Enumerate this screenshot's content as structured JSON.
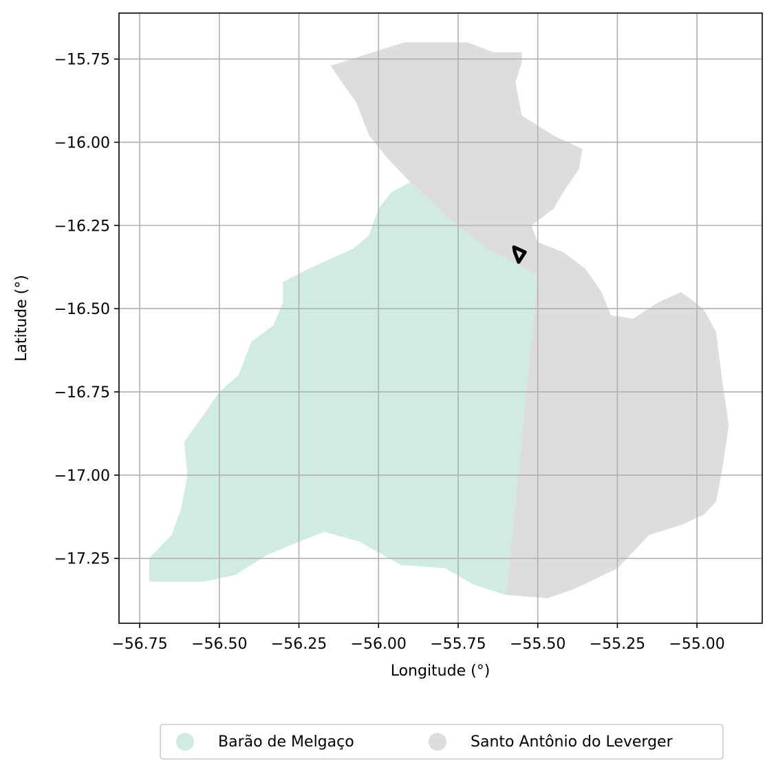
{
  "map": {
    "xlabel": "Longitude (°)",
    "ylabel": "Latitude (°)",
    "x_ticks": [
      -56.75,
      -56.5,
      -56.25,
      -56.0,
      -55.75,
      -55.5,
      -55.25,
      -55.0
    ],
    "x_tick_labels": [
      "−56.75",
      "−56.50",
      "−56.25",
      "−56.00",
      "−55.75",
      "−55.50",
      "−55.25",
      "−55.00"
    ],
    "y_ticks": [
      -15.75,
      -16.0,
      -16.25,
      -16.5,
      -16.75,
      -17.0,
      -17.25
    ],
    "y_tick_labels": [
      "−15.75",
      "−16.00",
      "−16.25",
      "−16.50",
      "−16.75",
      "−17.00",
      "−17.25"
    ],
    "xlim": [
      -56.815,
      -54.795
    ],
    "ylim": [
      -17.445,
      -15.612
    ],
    "grid": true,
    "legend_position": "bottom-center",
    "regions": [
      {
        "name": "Barão de Melgaço",
        "color": "#d0ebdf",
        "boundary": [
          [
            -55.9,
            -16.12
          ],
          [
            -55.79,
            -16.22
          ],
          [
            -55.66,
            -16.32
          ],
          [
            -55.5,
            -16.4
          ],
          [
            -55.6,
            -17.36
          ],
          [
            -55.7,
            -17.33
          ],
          [
            -55.79,
            -17.28
          ],
          [
            -55.93,
            -17.27
          ],
          [
            -56.06,
            -17.2
          ],
          [
            -56.17,
            -17.17
          ],
          [
            -56.25,
            -17.2
          ],
          [
            -56.35,
            -17.24
          ],
          [
            -56.45,
            -17.3
          ],
          [
            -56.55,
            -17.32
          ],
          [
            -56.64,
            -17.32
          ],
          [
            -56.72,
            -17.32
          ],
          [
            -56.72,
            -17.25
          ],
          [
            -56.65,
            -17.18
          ],
          [
            -56.62,
            -17.1
          ],
          [
            -56.6,
            -17.0
          ],
          [
            -56.61,
            -16.9
          ],
          [
            -56.55,
            -16.82
          ],
          [
            -56.5,
            -16.75
          ],
          [
            -56.44,
            -16.7
          ],
          [
            -56.4,
            -16.6
          ],
          [
            -56.33,
            -16.55
          ],
          [
            -56.3,
            -16.48
          ],
          [
            -56.3,
            -16.42
          ],
          [
            -56.22,
            -16.38
          ],
          [
            -56.15,
            -16.35
          ],
          [
            -56.08,
            -16.32
          ],
          [
            -56.03,
            -16.28
          ],
          [
            -56.0,
            -16.2
          ],
          [
            -55.96,
            -16.15
          ]
        ]
      },
      {
        "name": "Santo Antônio do Leverger",
        "color": "#dddddd",
        "boundary": [
          [
            -56.15,
            -15.77
          ],
          [
            -55.92,
            -15.7
          ],
          [
            -55.72,
            -15.7
          ],
          [
            -55.64,
            -15.73
          ],
          [
            -55.55,
            -15.73
          ],
          [
            -55.55,
            -15.76
          ],
          [
            -55.57,
            -15.82
          ],
          [
            -55.55,
            -15.92
          ],
          [
            -55.5,
            -15.95
          ],
          [
            -55.45,
            -15.98
          ],
          [
            -55.36,
            -16.02
          ],
          [
            -55.37,
            -16.08
          ],
          [
            -55.42,
            -16.15
          ],
          [
            -55.45,
            -16.2
          ],
          [
            -55.52,
            -16.25
          ],
          [
            -55.5,
            -16.3
          ],
          [
            -55.42,
            -16.33
          ],
          [
            -55.35,
            -16.38
          ],
          [
            -55.3,
            -16.45
          ],
          [
            -55.27,
            -16.52
          ],
          [
            -55.2,
            -16.53
          ],
          [
            -55.12,
            -16.48
          ],
          [
            -55.05,
            -16.45
          ],
          [
            -54.98,
            -16.5
          ],
          [
            -54.94,
            -16.57
          ],
          [
            -54.92,
            -16.72
          ],
          [
            -54.9,
            -16.85
          ],
          [
            -54.92,
            -16.98
          ],
          [
            -54.94,
            -17.08
          ],
          [
            -54.98,
            -17.12
          ],
          [
            -55.05,
            -17.15
          ],
          [
            -55.15,
            -17.18
          ],
          [
            -55.25,
            -17.28
          ],
          [
            -55.38,
            -17.34
          ],
          [
            -55.47,
            -17.37
          ],
          [
            -55.6,
            -17.36
          ],
          [
            -55.5,
            -16.4
          ],
          [
            -55.66,
            -16.32
          ],
          [
            -55.79,
            -16.22
          ],
          [
            -55.9,
            -16.12
          ],
          [
            -55.97,
            -16.05
          ],
          [
            -56.03,
            -15.98
          ],
          [
            -56.07,
            -15.88
          ],
          [
            -56.13,
            -15.8
          ]
        ]
      }
    ],
    "marker": {
      "boundary": [
        [
          -55.575,
          -16.315
        ],
        [
          -55.54,
          -16.33
        ],
        [
          -55.56,
          -16.36
        ],
        [
          -55.572,
          -16.33
        ],
        [
          -55.575,
          -16.315
        ]
      ]
    }
  },
  "legend": {
    "items": [
      {
        "label": "Barão de Melgaço",
        "color": "#d0ebdf"
      },
      {
        "label": "Santo Antônio do Leverger",
        "color": "#dddddd"
      }
    ]
  }
}
